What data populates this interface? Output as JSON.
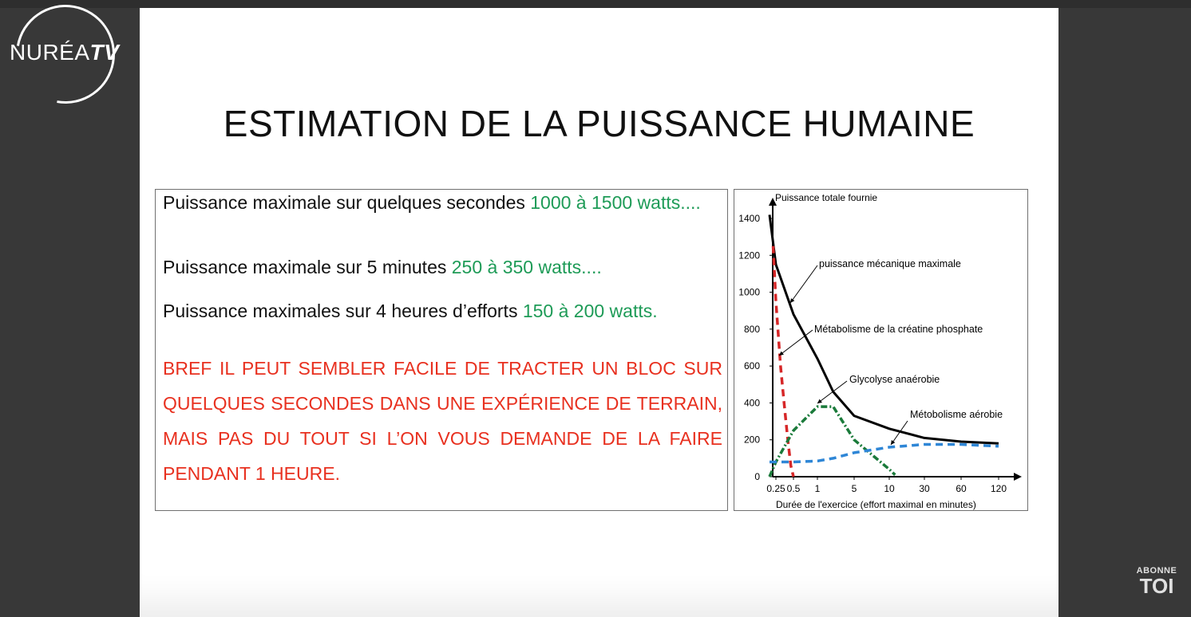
{
  "logo": {
    "brand": "NURÉA",
    "suffix": "TV"
  },
  "slide": {
    "title": "ESTIMATION DE LA PUISSANCE HUMAINE",
    "lines": [
      {
        "text": "Puissance maximale sur quelques secondes ",
        "value": "1000 à 1500 watts...."
      },
      {
        "text": "Puissance maximale sur 5 minutes ",
        "value": "250 à 350 watts...."
      },
      {
        "text": "Puissance maximales sur 4 heures d’efforts ",
        "value": "150 à 200 watts."
      }
    ],
    "conclusion": "BREF IL PEUT SEMBLER FACILE DE TRACTER UN BLOC SUR QUELQUES SECONDES DANS UNE EXPÉRIENCE DE TERRAIN, MAIS PAS DU TOUT SI L’ON VOUS DEMANDE DE LA FAIRE PENDANT 1 HEURE."
  },
  "chart_data": {
    "type": "line",
    "ylabel": "Puissance totale fournie",
    "xlabel": "Durée de l'exercice (effort maximal en minutes)",
    "x_ticks": [
      "0.25",
      "0.5",
      "1",
      "5",
      "10",
      "30",
      "60",
      "120"
    ],
    "y_ticks": [
      0,
      200,
      400,
      600,
      800,
      1000,
      1200,
      1400
    ],
    "ylim": [
      0,
      1450
    ],
    "series": [
      {
        "name": "puissance mécanique maximale",
        "color": "#000000",
        "style": "solid",
        "points": [
          [
            0.15,
            1420
          ],
          [
            0.25,
            1150
          ],
          [
            0.5,
            880
          ],
          [
            1,
            640
          ],
          [
            2,
            460
          ],
          [
            5,
            330
          ],
          [
            10,
            260
          ],
          [
            30,
            210
          ],
          [
            60,
            190
          ],
          [
            120,
            180
          ]
        ]
      },
      {
        "name": "Métabolisme de la créatine phosphate",
        "color": "#d62728",
        "style": "dashed",
        "points": [
          [
            0.2,
            1250
          ],
          [
            0.25,
            950
          ],
          [
            0.3,
            600
          ],
          [
            0.35,
            380
          ],
          [
            0.4,
            200
          ],
          [
            0.45,
            60
          ],
          [
            0.5,
            0
          ]
        ]
      },
      {
        "name": "Glycolyse anaérobie",
        "color": "#1a7a3a",
        "style": "dashdot",
        "points": [
          [
            0.15,
            0
          ],
          [
            0.25,
            80
          ],
          [
            0.5,
            250
          ],
          [
            1,
            380
          ],
          [
            2,
            380
          ],
          [
            5,
            200
          ],
          [
            10,
            40
          ],
          [
            12,
            10
          ]
        ]
      },
      {
        "name": "Métobolisme aérobie",
        "color": "#2e86d6",
        "style": "dashed",
        "points": [
          [
            0.15,
            80
          ],
          [
            0.5,
            80
          ],
          [
            1,
            85
          ],
          [
            2,
            100
          ],
          [
            5,
            130
          ],
          [
            10,
            160
          ],
          [
            30,
            175
          ],
          [
            60,
            175
          ],
          [
            120,
            165
          ]
        ]
      }
    ],
    "grid": false,
    "legend": "inline labels"
  },
  "badge": {
    "line1": "ABONNE",
    "line2": "TOI"
  }
}
